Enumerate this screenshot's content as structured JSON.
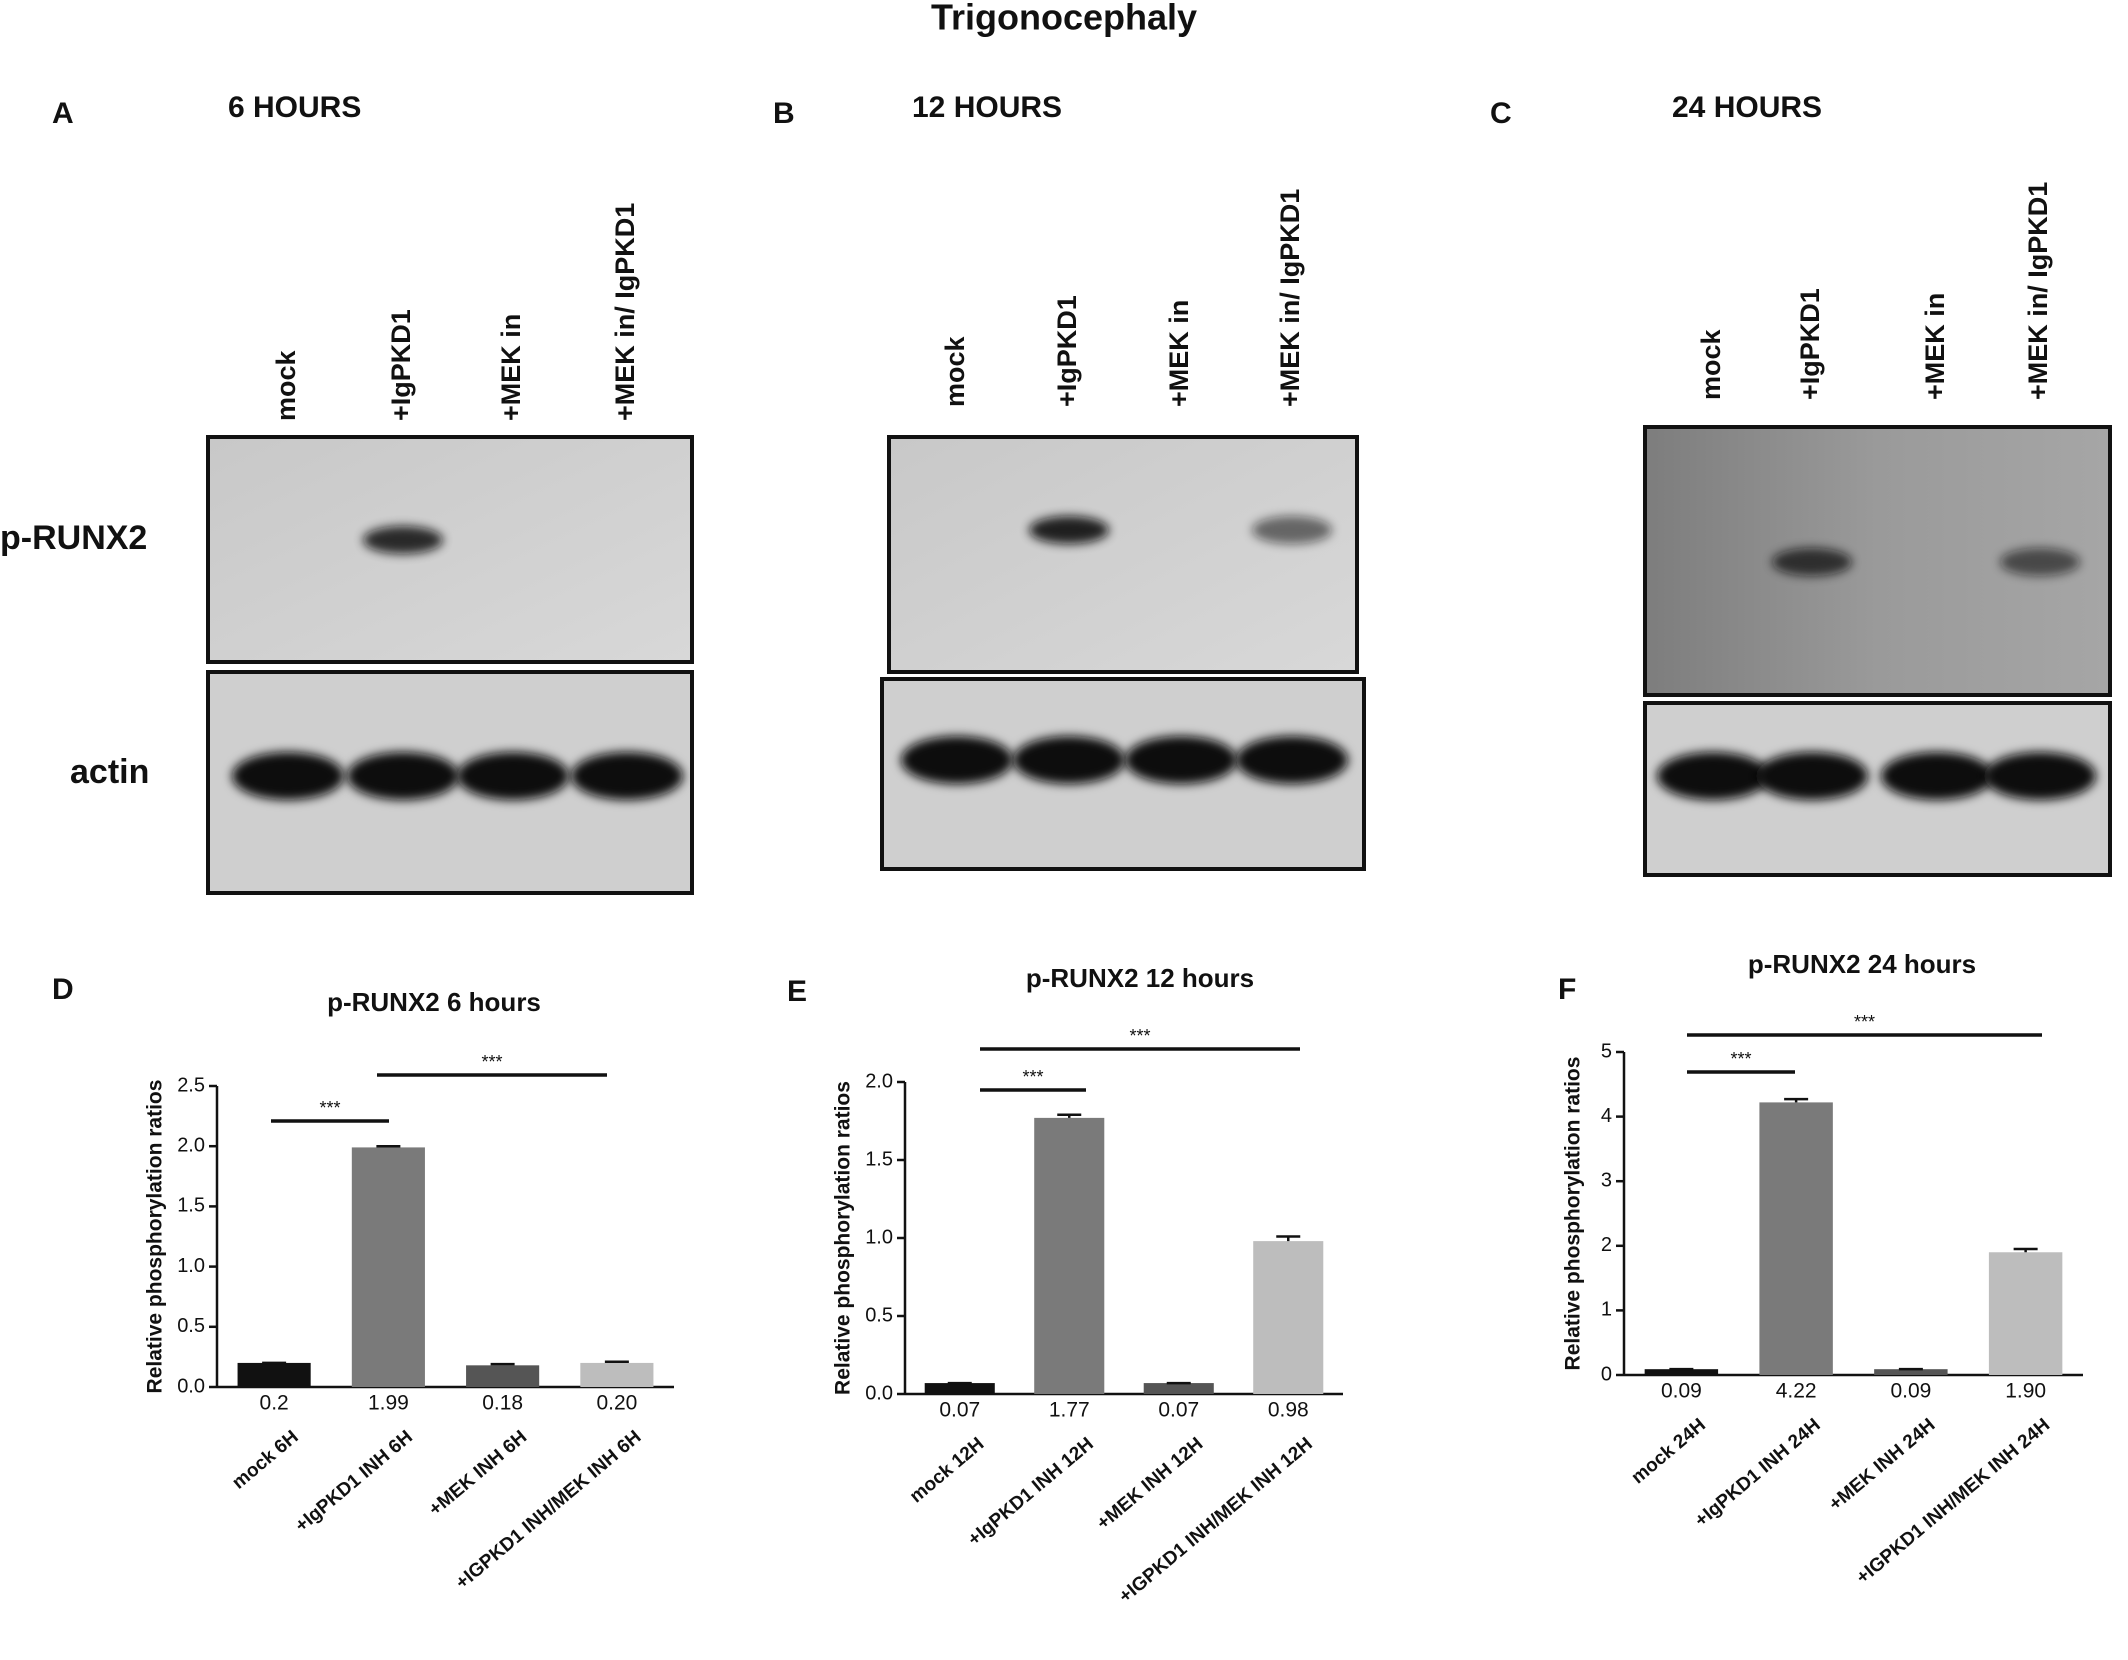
{
  "title": "Trigonocephaly",
  "row_labels": [
    "p-RUNX2",
    "actin"
  ],
  "blots": [
    {
      "letter": "A",
      "time": "6 HOURS",
      "lanes": [
        "mock",
        "+IgPKD1",
        "+MEK in",
        "+MEK in/ IgPKD1"
      ]
    },
    {
      "letter": "B",
      "time": "12 HOURS",
      "lanes": [
        "mock",
        "+IgPKD1",
        "+MEK in",
        "+MEK in/ IgPKD1"
      ]
    },
    {
      "letter": "C",
      "time": "24 HOURS",
      "lanes": [
        "mock",
        "+IgPKD1",
        "+MEK in",
        "+MEK in/ IgPKD1"
      ]
    }
  ],
  "chart_data": [
    {
      "type": "bar",
      "letter": "D",
      "title": "p-RUNX2 6 hours",
      "y_label": "Relative phosphorylation ratios",
      "categories": [
        "mock 6H",
        "+IgPKD1 INH 6H",
        "+MEK INH 6H",
        "+IGPKD1 INH/MEK INH 6H"
      ],
      "values": [
        0.2,
        1.99,
        0.18,
        0.2
      ],
      "value_labels": [
        "0.2",
        "1.99",
        "0.18",
        "0.20"
      ],
      "errors": [
        0,
        0.01,
        0.01,
        0.01
      ],
      "colors": [
        "#111111",
        "#7a7a7a",
        "#555555",
        "#bdbdbd"
      ],
      "ylim": [
        0,
        2.5
      ],
      "yticks": [
        {
          "value": 0,
          "label": "0.0"
        },
        0.5,
        {
          "value": 1,
          "label": "1.0"
        },
        1.5,
        {
          "value": 2,
          "label": "2.0"
        },
        2.5
      ],
      "significance": [
        "***",
        "***"
      ]
    },
    {
      "type": "bar",
      "letter": "E",
      "title": "p-RUNX2 12 hours",
      "y_label": "Relative phosphorylation ratios",
      "categories": [
        "mock 12H",
        "+IgPKD1 INH 12H",
        "+MEK INH 12H",
        "+IGPKD1 INH/MEK INH 12H"
      ],
      "values": [
        0.07,
        1.77,
        0.07,
        0.98
      ],
      "value_labels": [
        "0.07",
        "1.77",
        "0.07",
        "0.98"
      ],
      "errors": [
        0,
        0.02,
        0,
        0.03
      ],
      "colors": [
        "#111111",
        "#7a7a7a",
        "#555555",
        "#bdbdbd"
      ],
      "ylim": [
        0,
        2
      ],
      "yticks": [
        {
          "value": 0,
          "label": "0.0"
        },
        0.5,
        {
          "value": 1,
          "label": "1.0"
        },
        1.5,
        {
          "value": 2,
          "label": "2.0"
        }
      ],
      "significance": [
        "***",
        "***"
      ]
    },
    {
      "type": "bar",
      "letter": "F",
      "title": "p-RUNX2 24 hours",
      "y_label": "Relative phosphorylation ratios",
      "categories": [
        "mock 24H",
        "+IgPKD1 INH 24H",
        "+MEK INH 24H",
        "+IGPKD1 INH/MEK INH 24H"
      ],
      "values": [
        0.09,
        4.22,
        0.09,
        1.9
      ],
      "value_labels": [
        "0.09",
        "4.22",
        "0.09",
        "1.90"
      ],
      "errors": [
        0,
        0.05,
        0,
        0.05
      ],
      "colors": [
        "#111111",
        "#7a7a7a",
        "#555555",
        "#bdbdbd"
      ],
      "ylim": [
        0,
        5
      ],
      "yticks": [
        0,
        1,
        2,
        3,
        4,
        5
      ],
      "significance": [
        "***",
        "***"
      ]
    }
  ]
}
